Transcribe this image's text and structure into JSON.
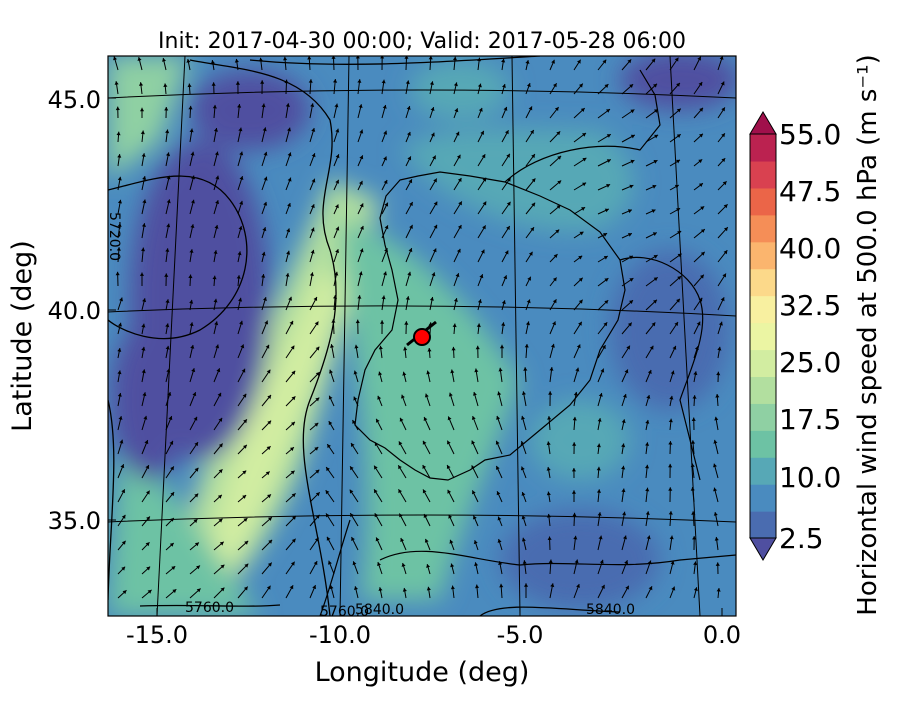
{
  "title": "Init: 2017-04-30 00:00; Valid: 2017-05-28 06:00",
  "xlabel": "Longitude (deg)",
  "ylabel": "Latitude (deg)",
  "x_ticks": [
    {
      "value": -15.0,
      "label": "-15.0"
    },
    {
      "value": -10.0,
      "label": "-10.0"
    },
    {
      "value": -5.0,
      "label": "-5.0"
    },
    {
      "value": 0.0,
      "label": "0.0"
    }
  ],
  "y_ticks": [
    {
      "value": 45.0,
      "label": "45.0"
    },
    {
      "value": 40.0,
      "label": "40.0"
    },
    {
      "value": 35.0,
      "label": "35.0"
    }
  ],
  "colorbar": {
    "label": "Horizontal wind speed at 500.0 hPa (m s⁻¹)",
    "ticks": [
      {
        "value": 55.0,
        "label": "55.0"
      },
      {
        "value": 47.5,
        "label": "47.5"
      },
      {
        "value": 40.0,
        "label": "40.0"
      },
      {
        "value": 32.5,
        "label": "32.5"
      },
      {
        "value": 25.0,
        "label": "25.0"
      },
      {
        "value": 17.5,
        "label": "17.5"
      },
      {
        "value": 10.0,
        "label": "10.0"
      },
      {
        "value": 2.5,
        "label": "2.5"
      }
    ],
    "colors": [
      "#4f4fa0",
      "#4a6cb0",
      "#4a8bbf",
      "#57a8b6",
      "#6dc2a4",
      "#8fd0a3",
      "#b2df9f",
      "#d2eda1",
      "#ebf5a3",
      "#f8f0a0",
      "#fcd98a",
      "#fbb56e",
      "#f58e57",
      "#eb6548",
      "#d94150",
      "#bb2250",
      "#a0104b"
    ]
  },
  "contour_labels": [
    {
      "text": "5760.0"
    },
    {
      "text": "5760.0"
    },
    {
      "text": "5840.0"
    },
    {
      "text": "5840.0"
    },
    {
      "text": "5720.0"
    }
  ],
  "marker": {
    "lon": -7.6,
    "lat": 39.5,
    "color": "#ff0000"
  },
  "chart_data": {
    "type": "heatmap",
    "title": "Init: 2017-04-30 00:00; Valid: 2017-05-28 06:00",
    "xlabel": "Longitude (deg)",
    "ylabel": "Latitude (deg)",
    "xlim": [
      -16.0,
      0.3
    ],
    "ylim": [
      32.5,
      46.0
    ],
    "variable": "Horizontal wind speed at 500.0 hPa",
    "units": "m s^-1",
    "levels_range": [
      2.5,
      55.0
    ],
    "overlays": [
      "wind vectors",
      "geopotential height contours",
      "coastlines",
      "lat/lon grid"
    ],
    "contour_values": [
      5720.0,
      5760.0,
      5840.0
    ],
    "jet_max_approx": 25.0
  }
}
